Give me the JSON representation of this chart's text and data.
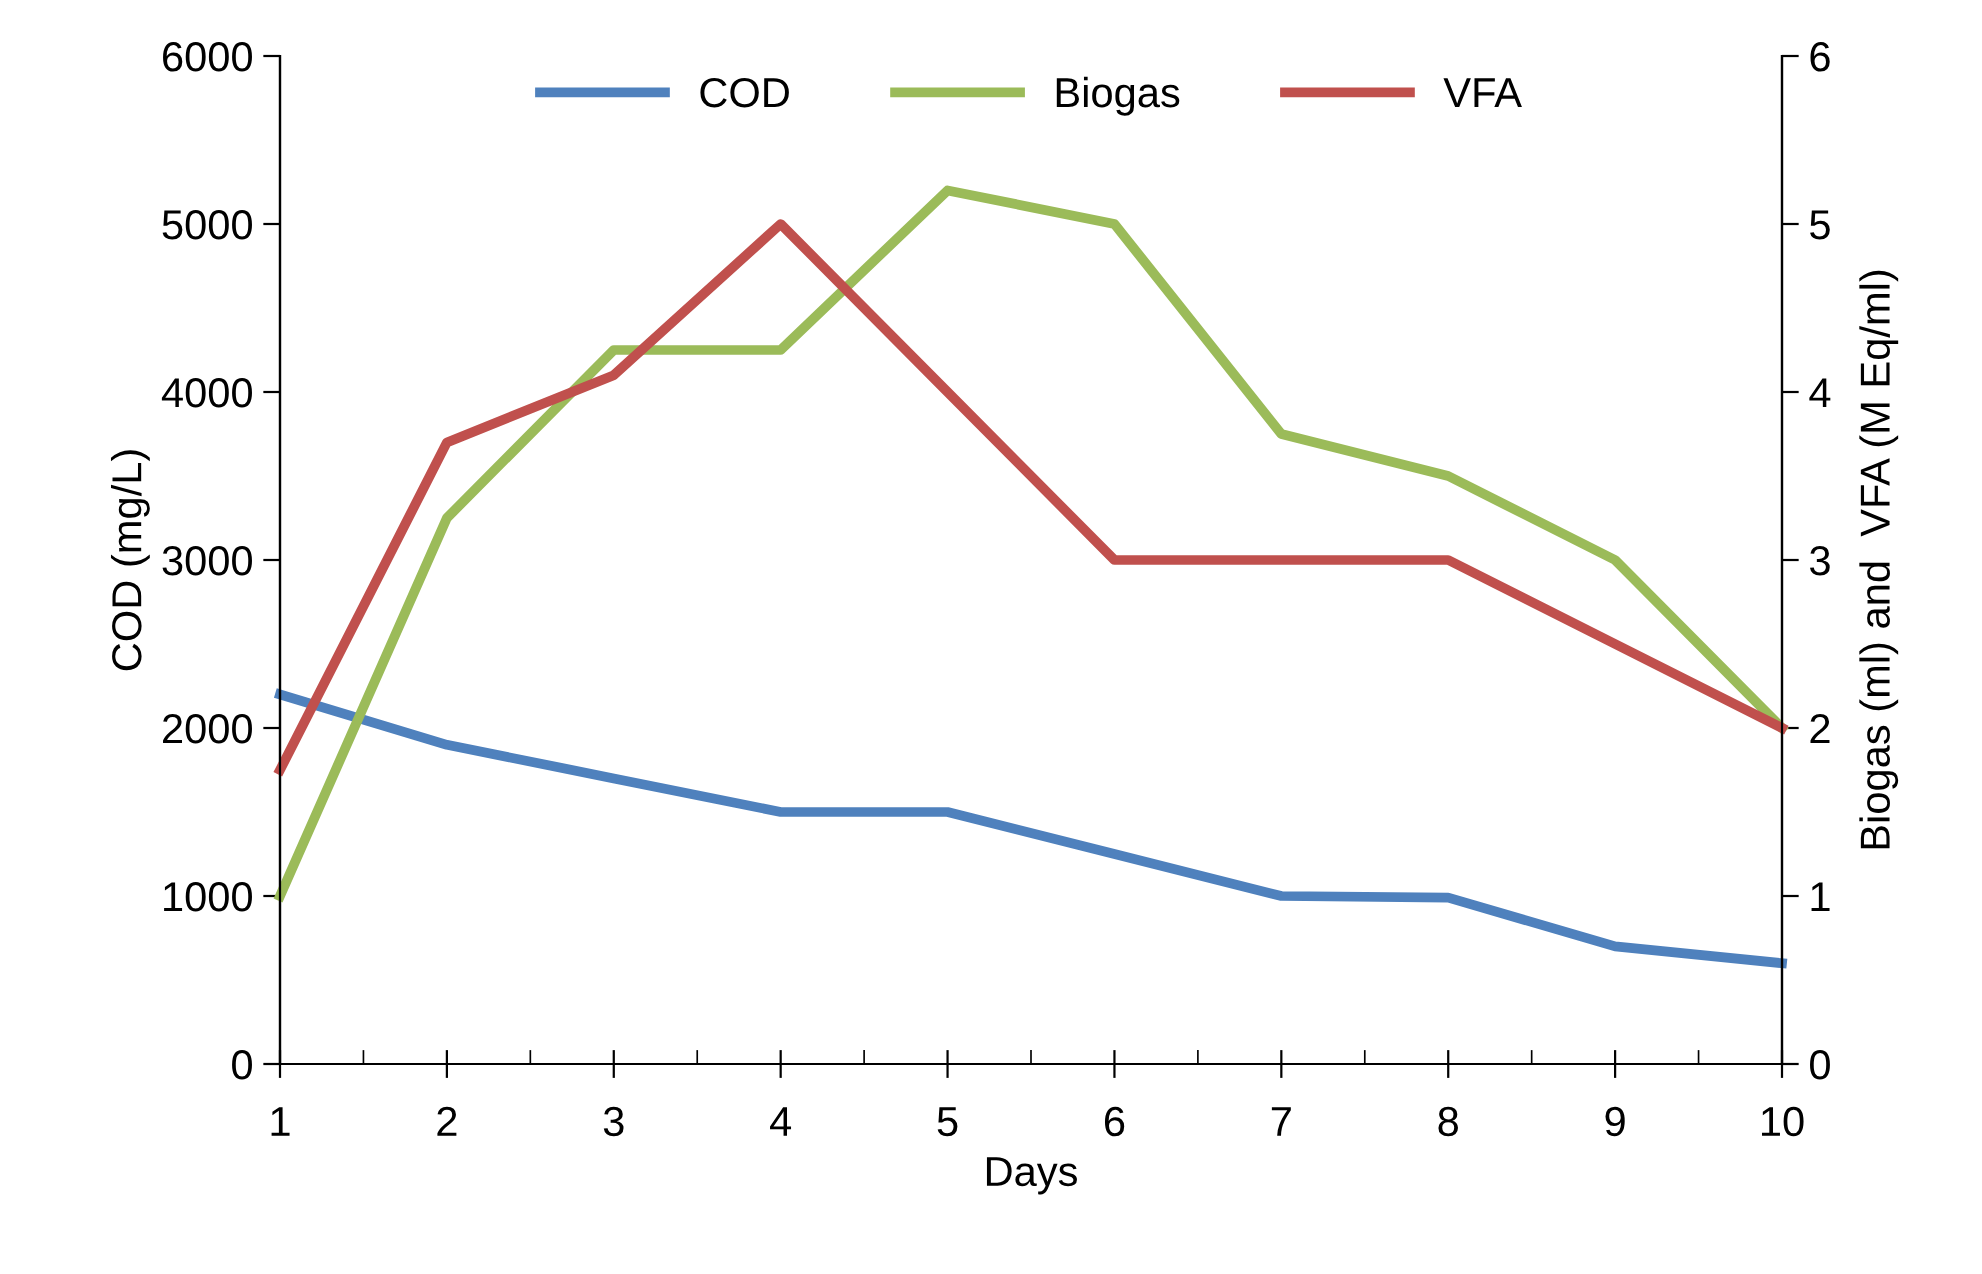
{
  "chart_data": {
    "type": "line",
    "xlabel": "Days",
    "ylabel": "COD (mg/L)",
    "y2label": "Biogas (ml) and  VFA (M Eq/ml)",
    "x": [
      1,
      2,
      3,
      4,
      5,
      6,
      7,
      8,
      9,
      10
    ],
    "series": [
      {
        "name": "COD",
        "color": "#4f81bd",
        "values": [
          2200,
          1900,
          1700,
          1500,
          1500,
          1250,
          1000,
          990,
          700,
          600
        ]
      },
      {
        "name": "Biogas",
        "color": "#9bbb59",
        "axis": "y2",
        "values": [
          1.0,
          3.25,
          4.25,
          4.25,
          5.2,
          5.0,
          3.75,
          3.5,
          3.0,
          2.0
        ]
      },
      {
        "name": "VFA",
        "color": "#c0504d",
        "axis": "y2",
        "values": [
          1.75,
          3.7,
          4.1,
          5.0,
          4.0,
          3.0,
          3.0,
          3.0,
          2.5,
          2.0
        ]
      }
    ],
    "xlim": [
      1,
      10
    ],
    "xticks": [
      1,
      2,
      3,
      4,
      5,
      6,
      7,
      8,
      9,
      10
    ],
    "ylim": [
      0,
      6000
    ],
    "yticks": [
      0,
      1000,
      2000,
      3000,
      4000,
      5000,
      6000
    ],
    "y2lim": [
      0,
      6
    ],
    "y2ticks": [
      0,
      1,
      2,
      3,
      4,
      5,
      6
    ],
    "grid": false,
    "legend": "top",
    "marker": "none",
    "line_style": "solid"
  }
}
